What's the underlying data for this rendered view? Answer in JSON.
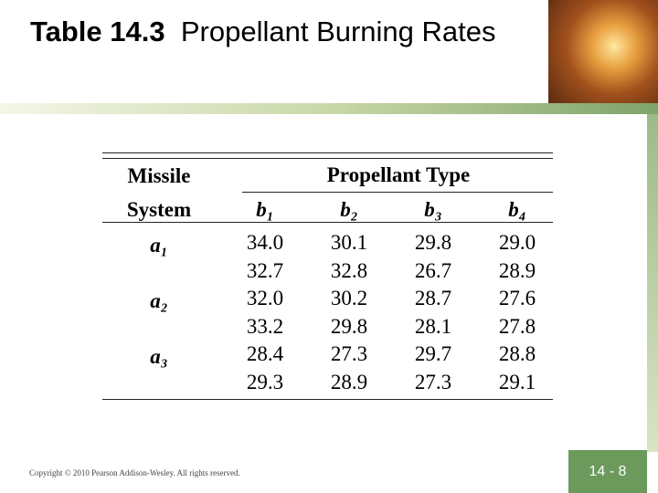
{
  "header": {
    "title_bold": "Table 14.3",
    "title": "Propellant Burning Rates"
  },
  "table": {
    "row_header": "Missile System",
    "group_header": "Propellant Type",
    "columns": [
      "b₁",
      "b₂",
      "b₃",
      "b₄"
    ],
    "rows": [
      {
        "system": "a₁",
        "values": [
          [
            "34.0",
            "30.1",
            "29.8",
            "29.0"
          ],
          [
            "32.7",
            "32.8",
            "26.7",
            "28.9"
          ]
        ]
      },
      {
        "system": "a₂",
        "values": [
          [
            "32.0",
            "30.2",
            "28.7",
            "27.6"
          ],
          [
            "33.2",
            "29.8",
            "28.1",
            "27.8"
          ]
        ]
      },
      {
        "system": "a₃",
        "values": [
          [
            "28.4",
            "27.3",
            "29.7",
            "28.8"
          ],
          [
            "29.3",
            "28.9",
            "27.3",
            "29.1"
          ]
        ]
      }
    ]
  },
  "footer": {
    "copyright": "Copyright © 2010 Pearson Addison-Wesley. All rights reserved.",
    "page": "14 - 8"
  }
}
